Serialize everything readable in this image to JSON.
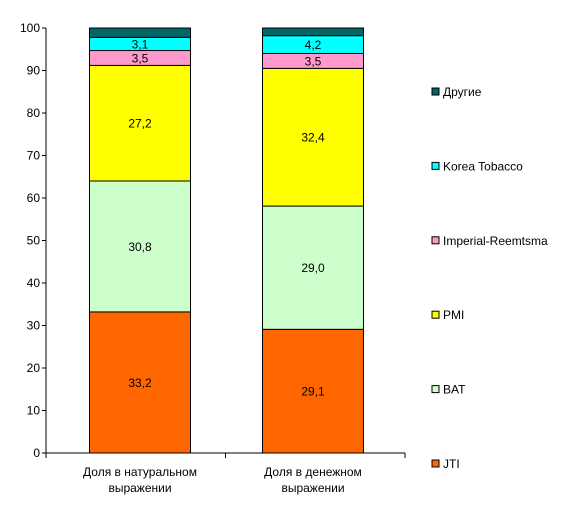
{
  "chart_data": {
    "type": "bar",
    "stacked": true,
    "title": "",
    "xlabel": "",
    "ylabel": "",
    "ylim": [
      0,
      100
    ],
    "yticks": [
      0,
      10,
      20,
      30,
      40,
      50,
      60,
      70,
      80,
      90,
      100
    ],
    "grid": false,
    "legend_position": "right",
    "categories": [
      [
        "Доля в натуральном",
        "выражении"
      ],
      [
        "Доля в денежном",
        "выражении"
      ]
    ],
    "series": [
      {
        "name": "JTI",
        "color": "#FF6600",
        "values": [
          33.2,
          29.1
        ],
        "labels": [
          "33,2",
          "29,1"
        ]
      },
      {
        "name": "BAT",
        "color": "#CCFFCC",
        "values": [
          30.8,
          29.0
        ],
        "labels": [
          "30,8",
          "29,0"
        ]
      },
      {
        "name": "PMI",
        "color": "#FFFF00",
        "values": [
          27.2,
          32.4
        ],
        "labels": [
          "27,2",
          "32,4"
        ]
      },
      {
        "name": "Imperial-Reemtsma",
        "color": "#FF99CC",
        "values": [
          3.5,
          3.5
        ],
        "labels": [
          "3,5",
          "3,5"
        ]
      },
      {
        "name": "Korea Tobacco",
        "color": "#00FFFF",
        "values": [
          3.1,
          4.2
        ],
        "labels": [
          "3,1",
          "4,2"
        ]
      },
      {
        "name": "Другие",
        "color": "#006666",
        "values": [
          2.2,
          1.8
        ],
        "labels": [
          "",
          ""
        ]
      }
    ]
  }
}
